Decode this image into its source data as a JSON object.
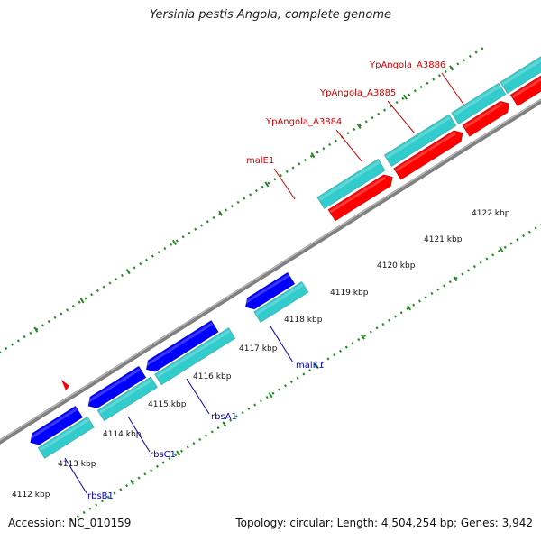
{
  "title": "Yersinia pestis Angola, complete genome",
  "footer": {
    "accession": "Accession: NC_010159",
    "summary": "Topology: circular; Length: 4,504,254 bp; Genes: 3,942"
  },
  "colors": {
    "forward_cds": "#ff0000",
    "reverse_cds": "#0000ff",
    "orf": "#33cccc",
    "backbone": "#808080",
    "dotted_scale": "#228b22",
    "label_forward": "#dd0000",
    "label_reverse": "#0000cc"
  },
  "kbp_ticks": [
    "4112 kbp",
    "4113 kbp",
    "4114 kbp",
    "4115 kbp",
    "4116 kbp",
    "4117 kbp",
    "4118 kbp",
    "4119 kbp",
    "4120 kbp",
    "4121 kbp",
    "4122 kbp"
  ],
  "gene_labels": {
    "ypangola_a3886": "YpAngola_A3886",
    "ypangola_a3885": "YpAngola_A3885",
    "ypangola_a3884": "YpAngola_A3884",
    "male1": "malE1",
    "malk1": "malK1",
    "rbsa1": "rbsA1",
    "rbsc1": "rbsC1",
    "rbsb1": "rbsB1"
  }
}
